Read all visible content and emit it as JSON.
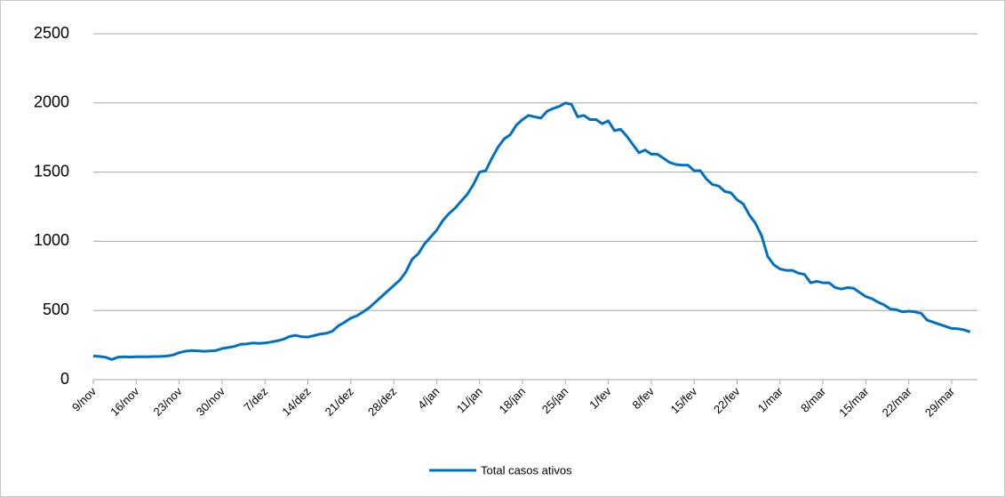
{
  "chart_data": {
    "type": "line",
    "categories": [
      "9/nov",
      null,
      null,
      null,
      null,
      null,
      null,
      "16/nov",
      null,
      null,
      null,
      null,
      null,
      null,
      "23/nov",
      null,
      null,
      null,
      null,
      null,
      null,
      "30/nov",
      null,
      null,
      null,
      null,
      null,
      null,
      "7/dez",
      null,
      null,
      null,
      null,
      null,
      null,
      "14/dez",
      null,
      null,
      null,
      null,
      null,
      null,
      "21/dez",
      null,
      null,
      null,
      null,
      null,
      null,
      "28/dez",
      null,
      null,
      null,
      null,
      null,
      null,
      "4/jan",
      null,
      null,
      null,
      null,
      null,
      null,
      "11/jan",
      null,
      null,
      null,
      null,
      null,
      null,
      "18/jan",
      null,
      null,
      null,
      null,
      null,
      null,
      "25/jan",
      null,
      null,
      null,
      null,
      null,
      null,
      "1/fev",
      null,
      null,
      null,
      null,
      null,
      null,
      "8/fev",
      null,
      null,
      null,
      null,
      null,
      null,
      "15/fev",
      null,
      null,
      null,
      null,
      null,
      null,
      "22/fev",
      null,
      null,
      null,
      null,
      null,
      null,
      "1/mar",
      null,
      null,
      null,
      null,
      null,
      null,
      "8/mar",
      null,
      null,
      null,
      null,
      null,
      null,
      "15/mar",
      null,
      null,
      null,
      null,
      null,
      null,
      "22/mar",
      null,
      null,
      null,
      null,
      null,
      null,
      "29/mar",
      null,
      null,
      null
    ],
    "series": [
      {
        "name": "Total casos ativos",
        "color": "#0070c0",
        "values": [
          170,
          168,
          162,
          145,
          162,
          165,
          163,
          165,
          165,
          166,
          167,
          168,
          170,
          178,
          195,
          205,
          210,
          208,
          205,
          207,
          210,
          225,
          232,
          240,
          255,
          258,
          265,
          262,
          265,
          272,
          280,
          292,
          312,
          320,
          310,
          308,
          318,
          330,
          335,
          350,
          390,
          415,
          445,
          462,
          490,
          520,
          560,
          600,
          640,
          680,
          720,
          780,
          870,
          910,
          980,
          1030,
          1080,
          1150,
          1200,
          1240,
          1290,
          1340,
          1410,
          1500,
          1510,
          1600,
          1680,
          1740,
          1770,
          1840,
          1880,
          1910,
          1900,
          1890,
          1940,
          1960,
          1975,
          2000,
          1990,
          1900,
          1910,
          1880,
          1880,
          1850,
          1870,
          1800,
          1810,
          1760,
          1700,
          1640,
          1660,
          1630,
          1630,
          1600,
          1570,
          1555,
          1550,
          1550,
          1510,
          1510,
          1450,
          1410,
          1400,
          1360,
          1350,
          1300,
          1270,
          1190,
          1130,
          1040,
          890,
          830,
          800,
          790,
          790,
          770,
          760,
          700,
          710,
          700,
          700,
          665,
          655,
          665,
          660,
          630,
          600,
          585,
          560,
          540,
          510,
          505,
          490,
          495,
          490,
          480,
          430,
          415,
          400,
          385,
          370,
          368,
          360,
          345
        ]
      }
    ],
    "ylim": [
      0,
      2500
    ],
    "yticks": [
      0,
      500,
      1000,
      1500,
      2000,
      2500
    ],
    "grid": true,
    "legend": "bottom"
  }
}
